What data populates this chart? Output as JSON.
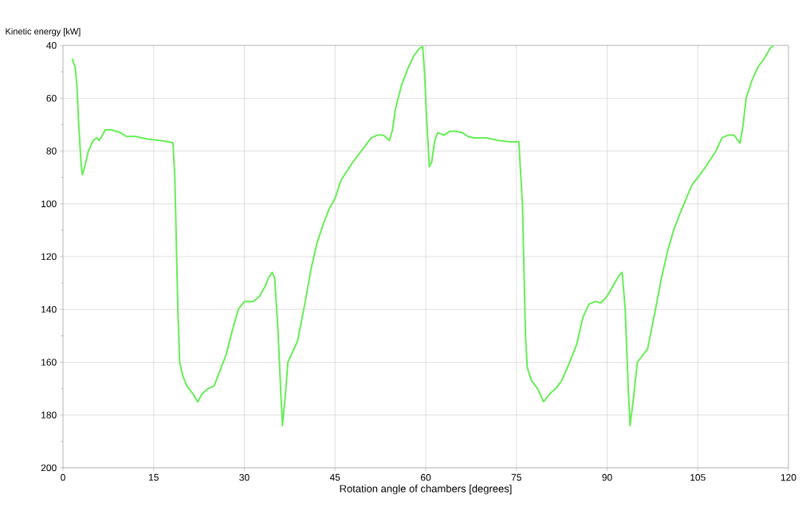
{
  "chart_data": {
    "type": "line",
    "xlabel": "Rotation angle of chambers [degrees]",
    "ylabel": "Kinetic energy [kW]",
    "xlim": [
      0,
      120
    ],
    "xticks": [
      0,
      15,
      30,
      45,
      60,
      75,
      90,
      105,
      120
    ],
    "ylim": [
      200,
      40
    ],
    "yticks": [
      40,
      {
        "value": 50,
        "label": null
      },
      60,
      {
        "value": 70,
        "label": null
      },
      80,
      {
        "value": 90,
        "label": null
      },
      100,
      {
        "value": 110,
        "label": null
      },
      120,
      {
        "value": 130,
        "label": null
      },
      140,
      {
        "value": 150,
        "label": null
      },
      160,
      {
        "value": 170,
        "label": null
      },
      180,
      {
        "value": 190,
        "label": null
      },
      200
    ],
    "grid": true,
    "marker": "none",
    "line_style": "solid",
    "series": [
      {
        "color": "#66ee55",
        "x": [
          1.5,
          2.0,
          2.3,
          2.6,
          3.0,
          3.2,
          3.6,
          4.2,
          5.0,
          5.6,
          6.0,
          6.5,
          7.0,
          8.0,
          9.5,
          10.5,
          12,
          14,
          16,
          17.5,
          18.2,
          18.5,
          18.8,
          19.0,
          19.3,
          19.8,
          20.5,
          21.5,
          22.3,
          23,
          24,
          25,
          26,
          27,
          28,
          29,
          30,
          31.5,
          32.5,
          33.5,
          34,
          34.6,
          35,
          35.5,
          36,
          36.3,
          36.8,
          37.2,
          38,
          38.8,
          40,
          41,
          42,
          43,
          44,
          45,
          46,
          48,
          50,
          51,
          52,
          53,
          54,
          54.5,
          55,
          56,
          57,
          58,
          59,
          59.5,
          59.8,
          60.2,
          60.6,
          61,
          61.5,
          62,
          63,
          64,
          65,
          66,
          67,
          68,
          70,
          72,
          74,
          75.4,
          76,
          76.3,
          76.5,
          76.8,
          77.5,
          78.5,
          79.5,
          80.5,
          81.5,
          82.5,
          84,
          85,
          86,
          87,
          88,
          89,
          90,
          91,
          92,
          92.5,
          93,
          93.5,
          93.8,
          94.3,
          95,
          96,
          96.7,
          98,
          99,
          100,
          101,
          102,
          104,
          106,
          108,
          109,
          110,
          111,
          112,
          112.5,
          113,
          114,
          115,
          116,
          117,
          117.5
        ],
        "values": [
          45,
          48,
          55,
          70,
          85,
          89,
          86,
          80,
          76,
          75,
          76,
          74,
          72,
          72,
          73,
          74.5,
          74.5,
          75.5,
          76,
          76.5,
          77,
          90,
          120,
          140,
          160,
          165,
          169,
          172,
          175,
          172,
          170,
          169,
          163,
          157,
          148,
          140,
          137,
          137,
          135,
          131,
          128,
          126,
          128,
          145,
          170,
          184,
          172,
          160,
          156,
          152,
          138,
          125,
          115,
          108,
          102,
          98,
          91,
          84,
          78,
          75,
          74,
          74,
          76,
          72,
          64,
          55,
          49,
          44,
          41,
          40.5,
          50,
          70,
          86,
          84,
          76,
          73,
          74,
          72.5,
          72.5,
          73,
          74.5,
          75,
          75,
          76,
          76.5,
          76.5,
          100,
          130,
          150,
          162,
          167,
          170,
          175,
          172,
          170,
          167,
          159,
          153,
          143,
          138,
          137,
          137.5,
          135,
          131,
          127,
          126,
          140,
          170,
          184,
          175,
          160,
          157,
          155,
          140,
          128,
          118,
          110,
          104,
          93,
          87,
          80,
          75,
          74,
          74,
          77,
          70,
          60,
          53,
          48,
          45,
          41,
          40
        ]
      }
    ]
  }
}
